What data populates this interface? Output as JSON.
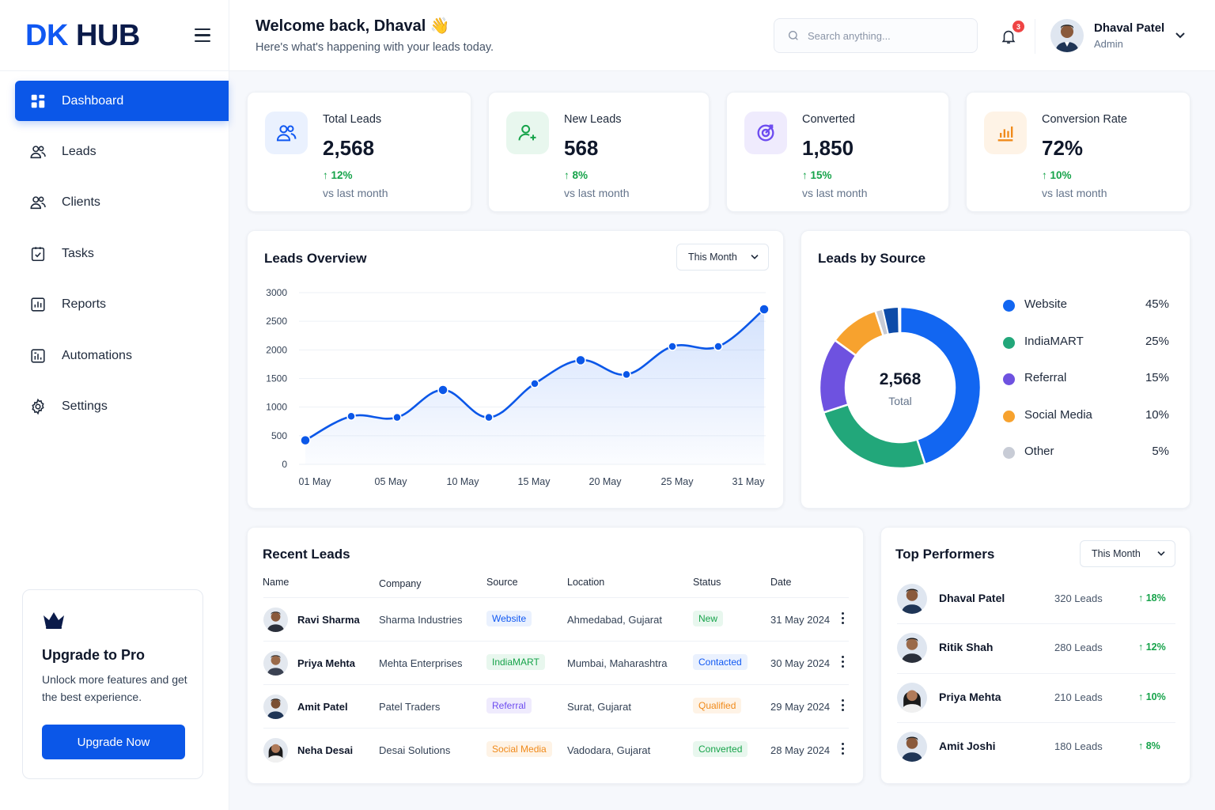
{
  "brand": {
    "logo_part1": "DK",
    "logo_part2": " HUB"
  },
  "header": {
    "welcome": "Welcome back, Dhaval 👋",
    "subtitle": "Here's what's happening with your leads today.",
    "search_placeholder": "Search anything...",
    "notification_count": "3",
    "user_name": "Dhaval Patel",
    "user_role": "Admin"
  },
  "sidebar": {
    "items": [
      {
        "label": "Dashboard",
        "icon": "grid-icon"
      },
      {
        "label": "Leads",
        "icon": "users-icon"
      },
      {
        "label": "Clients",
        "icon": "users-icon"
      },
      {
        "label": "Tasks",
        "icon": "clipboard-check-icon"
      },
      {
        "label": "Reports",
        "icon": "chart-report-icon"
      },
      {
        "label": "Automations",
        "icon": "automation-icon"
      },
      {
        "label": "Settings",
        "icon": "gear-icon"
      }
    ],
    "upgrade": {
      "title": "Upgrade to Pro",
      "text": "Unlock more features and get the best experience.",
      "button": "Upgrade Now"
    }
  },
  "stats": [
    {
      "label": "Total Leads",
      "value": "2,568",
      "change": "12%",
      "vs": "vs last month",
      "color": "#1058f2",
      "bg": "#eaf1fe"
    },
    {
      "label": "New Leads",
      "value": "568",
      "change": "8%",
      "vs": "vs last month",
      "color": "#16a34a",
      "bg": "#e8f7ee"
    },
    {
      "label": "Converted",
      "value": "1,850",
      "change": "15%",
      "vs": "vs last month",
      "color": "#6d4cf0",
      "bg": "#efebfd"
    },
    {
      "label": "Conversion Rate",
      "value": "72%",
      "change": "10%",
      "vs": "vs last month",
      "color": "#f08a1a",
      "bg": "#fef3e6"
    }
  ],
  "leads_overview": {
    "title": "Leads Overview",
    "filter": "This Month"
  },
  "chart_data": [
    {
      "type": "area",
      "x": [
        "01 May",
        "05 May",
        "10 May",
        "15 May",
        "20 May",
        "25 May",
        "31 May"
      ],
      "points": [
        {
          "x": "01 May",
          "y": 420
        },
        {
          "x": "",
          "y": 840
        },
        {
          "x": "",
          "y": 820
        },
        {
          "x": "",
          "y": 1300
        },
        {
          "x": "",
          "y": 820
        },
        {
          "x": "",
          "y": 1410
        },
        {
          "x": "",
          "y": 1820
        },
        {
          "x": "",
          "y": 1570
        },
        {
          "x": "",
          "y": 2060
        },
        {
          "x": "",
          "y": 2060
        },
        {
          "x": "31 May",
          "y": 2710
        }
      ],
      "yticks": [
        0,
        500,
        1000,
        1500,
        2000,
        2500,
        3000
      ],
      "ylim": [
        0,
        3000
      ],
      "grid": true,
      "color": "#0b57e8"
    },
    {
      "type": "pie",
      "title": "Leads by Source",
      "center_value": "2,568",
      "center_label": "Total",
      "slices": [
        {
          "name": "Website",
          "value": 45,
          "label": "45%",
          "color": "#1266f1"
        },
        {
          "name": "IndiaMART",
          "value": 25,
          "label": "25%",
          "color": "#22a77a"
        },
        {
          "name": "Referral",
          "value": 15,
          "label": "15%",
          "color": "#6e52e0"
        },
        {
          "name": "Social Media",
          "value": 10,
          "label": "10%",
          "color": "#f7a22e"
        },
        {
          "name": "Other",
          "value": 5,
          "label": "5%",
          "color": "#c8ccd6"
        }
      ]
    }
  ],
  "recent_leads": {
    "title": "Recent Leads",
    "columns": [
      "Name",
      "Company",
      "Source",
      "Location",
      "Status",
      "Date"
    ],
    "rows": [
      {
        "name": "Ravi Sharma",
        "company": "Sharma Industries",
        "source": "Website",
        "location": "Ahmedabad, Gujarat",
        "status": "New",
        "date": "31 May 2024"
      },
      {
        "name": "Priya Mehta",
        "company": "Mehta Enterprises",
        "source": "IndiaMART",
        "location": "Mumbai, Maharashtra",
        "status": "Contacted",
        "date": "30 May 2024"
      },
      {
        "name": "Amit Patel",
        "company": "Patel Traders",
        "source": "Referral",
        "location": "Surat, Gujarat",
        "status": "Qualified",
        "date": "29 May 2024"
      },
      {
        "name": "Neha Desai",
        "company": "Desai Solutions",
        "source": "Social Media",
        "location": "Vadodara, Gujarat",
        "status": "Converted",
        "date": "28 May 2024"
      }
    ]
  },
  "top_performers": {
    "title": "Top Performers",
    "filter": "This Month",
    "people": [
      {
        "name": "Dhaval Patel",
        "leads": "320 Leads",
        "change": "18%"
      },
      {
        "name": "Ritik Shah",
        "leads": "280 Leads",
        "change": "12%"
      },
      {
        "name": "Priya Mehta",
        "leads": "210 Leads",
        "change": "10%"
      },
      {
        "name": "Amit Joshi",
        "leads": "180 Leads",
        "change": "8%"
      }
    ]
  }
}
